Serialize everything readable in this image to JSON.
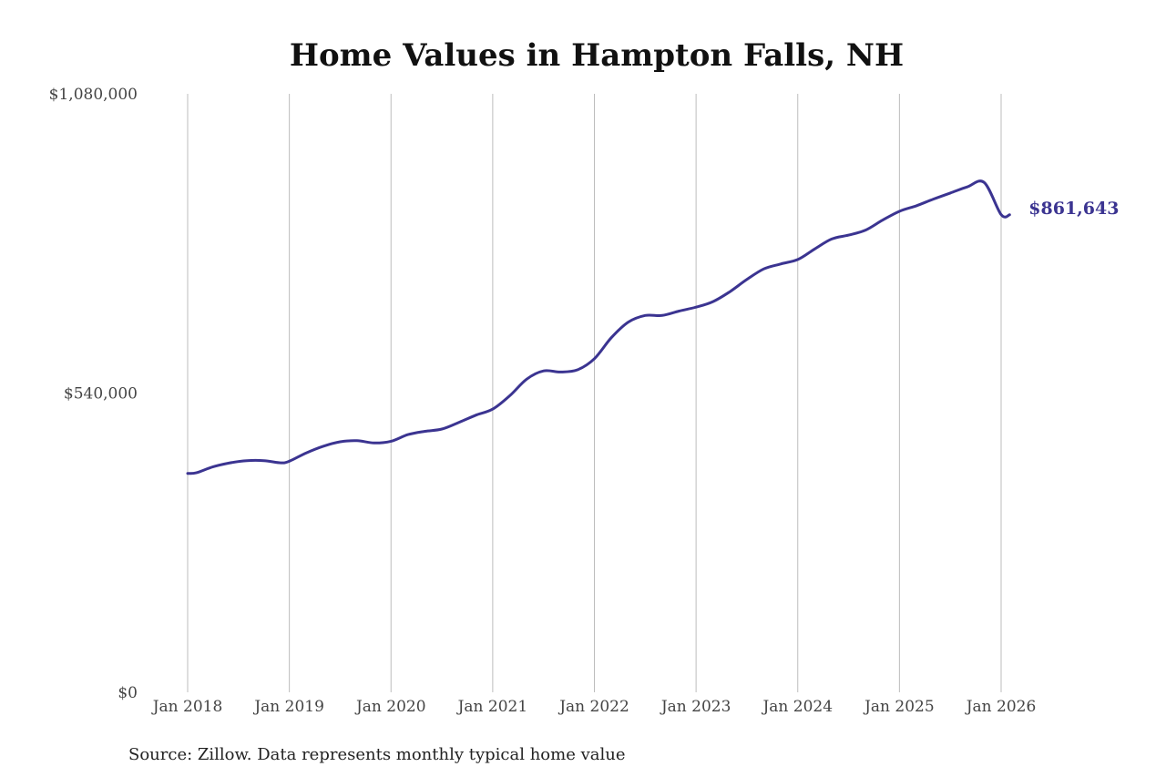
{
  "chart_data": {
    "type": "line",
    "title": "Home Values in Hampton Falls, NH",
    "source": "Source: Zillow. Data represents monthly typical home value",
    "ylim": [
      0,
      1080000
    ],
    "yticks": [
      {
        "value": 0,
        "label": "$0"
      },
      {
        "value": 540000,
        "label": "$540,000"
      },
      {
        "value": 1080000,
        "label": "$1,080,000"
      }
    ],
    "xlim": [
      "2018-01",
      "2026-02"
    ],
    "xticks": [
      {
        "x": "2018-01",
        "label": "Jan 2018"
      },
      {
        "x": "2019-01",
        "label": "Jan 2019"
      },
      {
        "x": "2020-01",
        "label": "Jan 2020"
      },
      {
        "x": "2021-01",
        "label": "Jan 2021"
      },
      {
        "x": "2022-01",
        "label": "Jan 2022"
      },
      {
        "x": "2023-01",
        "label": "Jan 2023"
      },
      {
        "x": "2024-01",
        "label": "Jan 2024"
      },
      {
        "x": "2025-01",
        "label": "Jan 2025"
      },
      {
        "x": "2026-01",
        "label": "Jan 2026"
      }
    ],
    "grid": "vertical",
    "line_color": "#3b3491",
    "end_label": "$861,643",
    "series": [
      {
        "x": [
          "2018-01",
          "2018-02",
          "2018-04",
          "2018-06",
          "2018-08",
          "2018-10",
          "2018-12",
          "2019-01",
          "2019-03",
          "2019-05",
          "2019-07",
          "2019-09",
          "2019-11",
          "2020-01",
          "2020-03",
          "2020-05",
          "2020-07",
          "2020-09",
          "2020-11",
          "2021-01",
          "2021-03",
          "2021-05",
          "2021-07",
          "2021-09",
          "2021-11",
          "2022-01",
          "2022-03",
          "2022-05",
          "2022-07",
          "2022-09",
          "2022-11",
          "2023-01",
          "2023-03",
          "2023-05",
          "2023-07",
          "2023-09",
          "2023-11",
          "2024-01",
          "2024-03",
          "2024-05",
          "2024-07",
          "2024-09",
          "2024-11",
          "2025-01",
          "2025-03",
          "2025-05",
          "2025-07",
          "2025-09",
          "2025-11",
          "2026-01",
          "2026-02"
        ],
        "values": [
          395000,
          396000,
          407000,
          414000,
          418000,
          418000,
          414000,
          417000,
          432000,
          444000,
          452000,
          454000,
          450000,
          453000,
          465000,
          471000,
          475000,
          487000,
          500000,
          511000,
          535000,
          565000,
          580000,
          578000,
          582000,
          602000,
          640000,
          668000,
          680000,
          680000,
          688000,
          695000,
          705000,
          723000,
          745000,
          764000,
          773000,
          781000,
          800000,
          818000,
          825000,
          834000,
          852000,
          868000,
          878000,
          890000,
          901000,
          912000,
          920000,
          862000,
          861643
        ]
      }
    ]
  }
}
